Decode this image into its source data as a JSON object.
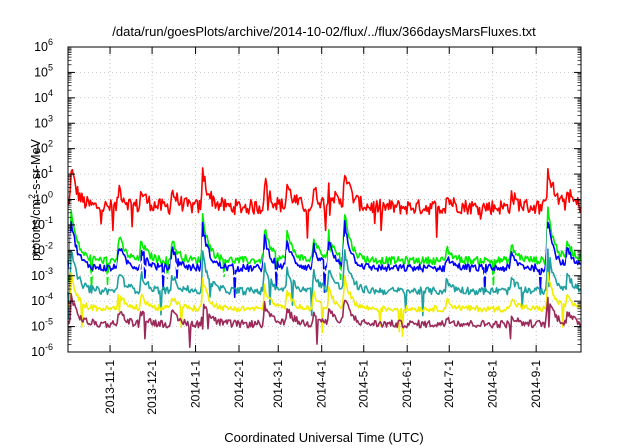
{
  "chart_data": {
    "type": "line",
    "title": "/data/run/goesPlots/archive/2014-10-02/flux/../flux/366daysMarsFluxes.txt",
    "xlabel": "Coordinated Universal Time (UTC)",
    "ylabel_prefix": "protons/cm",
    "ylabel_sup": "2",
    "ylabel_suffix": "-s-sr-MeV",
    "yscale": "log",
    "ylim_exponents": [
      -6,
      6
    ],
    "y_ticks": [
      {
        "exp": -6,
        "base": "10",
        "sup": "-6"
      },
      {
        "exp": -5,
        "base": "10",
        "sup": "-5"
      },
      {
        "exp": -4,
        "base": "10",
        "sup": "-4"
      },
      {
        "exp": -3,
        "base": "10",
        "sup": "-3"
      },
      {
        "exp": -2,
        "base": "10",
        "sup": "-2"
      },
      {
        "exp": -1,
        "base": "10",
        "sup": "-1"
      },
      {
        "exp": 0,
        "base": "10",
        "sup": "0"
      },
      {
        "exp": 1,
        "base": "10",
        "sup": "1"
      },
      {
        "exp": 2,
        "base": "10",
        "sup": "2"
      },
      {
        "exp": 3,
        "base": "10",
        "sup": "3"
      },
      {
        "exp": 4,
        "base": "10",
        "sup": "4"
      },
      {
        "exp": 5,
        "base": "10",
        "sup": "5"
      },
      {
        "exp": 6,
        "base": "10",
        "sup": "6"
      }
    ],
    "x_range_days": [
      0,
      366
    ],
    "x_ticks": [
      {
        "label": "2013-11-1",
        "day": 30
      },
      {
        "label": "2013-12-1",
        "day": 60
      },
      {
        "label": "2014-1-1",
        "day": 91
      },
      {
        "label": "2014-2-1",
        "day": 122
      },
      {
        "label": "2014-3-1",
        "day": 150
      },
      {
        "label": "2014-4-1",
        "day": 181
      },
      {
        "label": "2014-5-1",
        "day": 211
      },
      {
        "label": "2014-6-1",
        "day": 242
      },
      {
        "label": "2014-7-1",
        "day": 272
      },
      {
        "label": "2014-8-1",
        "day": 303
      },
      {
        "label": "2014-9-1",
        "day": 334
      }
    ],
    "grid": true,
    "events": [
      {
        "day": 2,
        "amp": 2.0
      },
      {
        "day": 36,
        "amp": 1.0
      },
      {
        "day": 52,
        "amp": 0.8
      },
      {
        "day": 74,
        "amp": 0.8
      },
      {
        "day": 96,
        "amp": 1.7
      },
      {
        "day": 140,
        "amp": 1.3
      },
      {
        "day": 156,
        "amp": 1.1
      },
      {
        "day": 175,
        "amp": 0.9
      },
      {
        "day": 186,
        "amp": 1.0
      },
      {
        "day": 197,
        "amp": 1.9
      },
      {
        "day": 270,
        "amp": 0.5
      },
      {
        "day": 316,
        "amp": 0.6
      },
      {
        "day": 342,
        "amp": 2.1
      },
      {
        "day": 356,
        "amp": 0.7
      }
    ],
    "series": [
      {
        "color": "#ff0000",
        "baseline_exp": -0.3,
        "noise": 0.3,
        "event_scale": 0.85
      },
      {
        "color": "#00ee00",
        "baseline_exp": -2.4,
        "noise": 0.15,
        "event_scale": 1.05
      },
      {
        "color": "#0000ff",
        "baseline_exp": -2.7,
        "noise": 0.15,
        "event_scale": 1.0
      },
      {
        "color": "#ffffff",
        "baseline_exp": -3.0,
        "noise": 0.1,
        "event_scale": 0.9
      },
      {
        "color": "#1fa0a0",
        "baseline_exp": -3.6,
        "noise": 0.15,
        "event_scale": 0.85
      },
      {
        "color": "#f2ee00",
        "baseline_exp": -4.3,
        "noise": 0.12,
        "event_scale": 0.7
      },
      {
        "color": "#9b2a5a",
        "baseline_exp": -4.9,
        "noise": 0.15,
        "event_scale": 0.6
      }
    ]
  }
}
